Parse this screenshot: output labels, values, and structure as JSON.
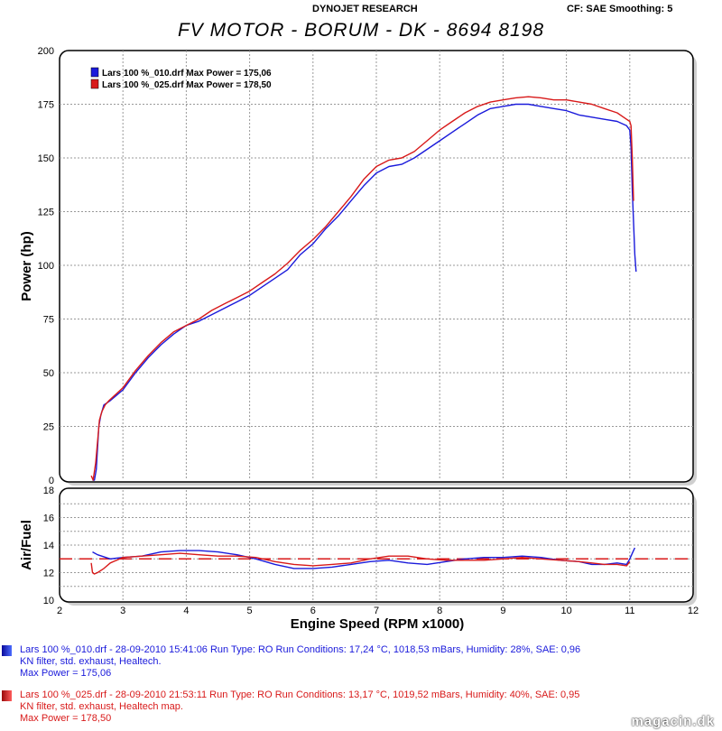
{
  "header": {
    "brand": "DYNOJET RESEARCH",
    "cf_info": "CF: SAE  Smoothing: 5",
    "title": "FV MOTOR - BORUM - DK - 8694 8198"
  },
  "colors": {
    "blue": "#1a1adb",
    "red": "#d81a1a",
    "grid": "#999999"
  },
  "chart_data": [
    {
      "type": "line",
      "ylabel": "Power (hp)",
      "ylim": [
        0,
        200
      ],
      "xlim": [
        2,
        12
      ],
      "grid": true,
      "legend_position": "top-left",
      "legend": [
        "Lars 100 %_010.drf Max Power = 175,06",
        "Lars 100 %_025.drf Max Power = 178,50"
      ],
      "series": [
        {
          "name": "Lars 100 %_010.drf Max Power = 175,06",
          "color": "#1a1adb",
          "x": [
            2.52,
            2.55,
            2.58,
            2.6,
            2.62,
            2.65,
            2.7,
            2.75,
            2.8,
            3.0,
            3.2,
            3.4,
            3.6,
            3.8,
            4.0,
            4.2,
            4.4,
            4.6,
            4.8,
            5.0,
            5.2,
            5.4,
            5.6,
            5.8,
            6.0,
            6.2,
            6.4,
            6.6,
            6.8,
            7.0,
            7.2,
            7.4,
            7.6,
            7.8,
            8.0,
            8.2,
            8.4,
            8.6,
            8.8,
            9.0,
            9.2,
            9.4,
            9.6,
            9.8,
            10.0,
            10.2,
            10.4,
            10.6,
            10.8,
            10.95,
            11.0,
            11.02,
            11.04,
            11.06,
            11.08,
            11.1
          ],
          "values": [
            0,
            0,
            5,
            15,
            25,
            30,
            35,
            36,
            37,
            42,
            50,
            57,
            63,
            68,
            72,
            74,
            77,
            80,
            83,
            86,
            90,
            94,
            98,
            105,
            110,
            117,
            123,
            130,
            137,
            143,
            146,
            147,
            150,
            154,
            158,
            162,
            166,
            170,
            173,
            174,
            175,
            175,
            174,
            173,
            172,
            170,
            169,
            168,
            167,
            165,
            163,
            155,
            135,
            120,
            105,
            97
          ]
        },
        {
          "name": "Lars 100 %_025.drf Max Power = 178,50",
          "color": "#d81a1a",
          "x": [
            2.5,
            2.53,
            2.57,
            2.6,
            2.63,
            2.67,
            2.72,
            2.78,
            3.0,
            3.2,
            3.4,
            3.6,
            3.8,
            4.0,
            4.2,
            4.4,
            4.6,
            4.8,
            5.0,
            5.2,
            5.4,
            5.6,
            5.8,
            6.0,
            6.2,
            6.4,
            6.6,
            6.8,
            7.0,
            7.2,
            7.4,
            7.6,
            7.8,
            8.0,
            8.2,
            8.4,
            8.6,
            8.8,
            9.0,
            9.2,
            9.4,
            9.6,
            9.8,
            10.0,
            10.2,
            10.4,
            10.6,
            10.8,
            10.95,
            11.0,
            11.02,
            11.04,
            11.06
          ],
          "values": [
            2,
            0,
            8,
            18,
            28,
            32,
            35,
            37,
            43,
            51,
            58,
            64,
            69,
            72,
            75,
            79,
            82,
            85,
            88,
            92,
            96,
            101,
            107,
            112,
            118,
            125,
            132,
            140,
            146,
            149,
            150,
            153,
            158,
            163,
            167,
            171,
            174,
            176,
            177,
            178,
            178.5,
            178,
            177,
            177,
            176,
            175,
            173,
            171,
            168,
            167,
            165,
            150,
            130
          ]
        }
      ]
    },
    {
      "type": "line",
      "ylabel": "Air/Fuel",
      "xlabel": "Engine Speed (RPM x1000)",
      "ylim": [
        10,
        18
      ],
      "xlim": [
        2,
        12
      ],
      "grid": true,
      "reference_line": 13,
      "series": [
        {
          "color": "#1a1adb",
          "x": [
            2.52,
            2.6,
            2.8,
            3.0,
            3.3,
            3.6,
            3.9,
            4.2,
            4.5,
            4.8,
            5.1,
            5.4,
            5.7,
            6.0,
            6.3,
            6.6,
            6.9,
            7.2,
            7.5,
            7.8,
            8.1,
            8.4,
            8.7,
            9.0,
            9.3,
            9.6,
            9.9,
            10.2,
            10.4,
            10.6,
            10.8,
            10.95,
            11.0,
            11.05,
            11.08
          ],
          "values": [
            13.5,
            13.3,
            13.0,
            13.1,
            13.2,
            13.5,
            13.6,
            13.6,
            13.5,
            13.3,
            13.0,
            12.6,
            12.3,
            12.3,
            12.4,
            12.6,
            12.8,
            12.9,
            12.7,
            12.6,
            12.8,
            13.0,
            13.1,
            13.1,
            13.2,
            13.1,
            12.9,
            12.8,
            12.6,
            12.6,
            12.7,
            12.6,
            13.0,
            13.5,
            13.8
          ]
        },
        {
          "color": "#d81a1a",
          "x": [
            2.5,
            2.52,
            2.55,
            2.6,
            2.7,
            2.8,
            3.0,
            3.3,
            3.6,
            3.9,
            4.2,
            4.5,
            4.8,
            5.1,
            5.4,
            5.7,
            6.0,
            6.3,
            6.6,
            6.9,
            7.2,
            7.5,
            7.8,
            8.1,
            8.4,
            8.7,
            9.0,
            9.3,
            9.6,
            9.9,
            10.2,
            10.4,
            10.6,
            10.8,
            10.95,
            11.0
          ],
          "values": [
            12.7,
            12.0,
            11.9,
            12.0,
            12.3,
            12.7,
            13.1,
            13.2,
            13.3,
            13.4,
            13.3,
            13.2,
            13.2,
            13.1,
            12.8,
            12.6,
            12.5,
            12.6,
            12.7,
            13.0,
            13.2,
            13.2,
            13.0,
            12.9,
            12.9,
            12.9,
            13.0,
            13.1,
            13.0,
            12.9,
            12.8,
            12.7,
            12.6,
            12.6,
            12.5,
            12.8
          ]
        }
      ]
    }
  ],
  "axis_ticks": {
    "power": [
      "0",
      "25",
      "50",
      "75",
      "100",
      "125",
      "150",
      "175",
      "200"
    ],
    "afr": [
      "10",
      "12",
      "14",
      "16",
      "18"
    ],
    "afr_minor": [
      "11",
      "13",
      "15",
      "17"
    ],
    "rpm": [
      "2",
      "3",
      "4",
      "5",
      "6",
      "7",
      "8",
      "9",
      "10",
      "11",
      "12"
    ]
  },
  "runs": [
    {
      "color": "#1a1adb",
      "line1": "Lars 100 %_010.drf - 28-09-2010 15:41:06  Run Type: RO  Run Conditions: 17,24 °C, 1018,53 mBars,  Humidity:  28%, SAE: 0,96",
      "line2": "KN filter, std. exhaust, Healtech.",
      "line3": "Max Power = 175,06"
    },
    {
      "color": "#d81a1a",
      "line1": "Lars 100 %_025.drf - 28-09-2010 21:53:11  Run Type: RO  Run Conditions: 13,17 °C, 1019,52 mBars,  Humidity:  40%, SAE: 0,95",
      "line2": "KN filter, std. exhaust, Healtech map.",
      "line3": "Max Power = 178,50"
    }
  ],
  "watermark": "magacin.dk"
}
